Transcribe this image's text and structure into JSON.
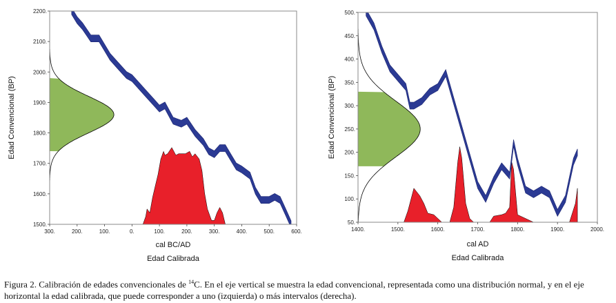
{
  "caption": {
    "prefix": "Figura 2. Calibración de edades convencionales de ",
    "superscript": "14",
    "suffix": "C. En el eje vertical se muestra la edad convencional, representada como una distribución normal, y en el eje horizontal la edad calibrada, que puede corresponder a uno (izquierda) o más intervalos (derecha)."
  },
  "chart_data": [
    {
      "type": "area",
      "ylabel": "Edad Convencional (BP)",
      "xlabel_axis": "cal BC/AD",
      "xlabel": "Edad Calibrada",
      "x_ticks": [
        "300.",
        "200.",
        "100.",
        "0.",
        "100.",
        "200.",
        "300.",
        "400.",
        "500.",
        "600."
      ],
      "y_ticks": [
        "1500.",
        "1600.",
        "1700.",
        "1800.",
        "1900.",
        "2000.",
        "2100.",
        "2200."
      ],
      "xlim": [
        -300,
        600
      ],
      "ylim": [
        1500,
        2200
      ],
      "colors": {
        "calibration_curve": "#2b3a94",
        "conventional_age": "#8fb85a",
        "calibrated_age": "#e8202a",
        "outline": "#000000"
      },
      "calibration_curve": {
        "x": [
          -220,
          -200,
          -180,
          -150,
          -120,
          -100,
          -80,
          -50,
          -20,
          0,
          20,
          50,
          80,
          100,
          120,
          150,
          180,
          200,
          230,
          260,
          280,
          300,
          320,
          340,
          360,
          380,
          400,
          430,
          450,
          470,
          500,
          520,
          540,
          560,
          580
        ],
        "y": [
          2200,
          2170,
          2150,
          2110,
          2110,
          2080,
          2050,
          2020,
          1990,
          1980,
          1960,
          1930,
          1900,
          1880,
          1890,
          1840,
          1830,
          1840,
          1800,
          1770,
          1740,
          1730,
          1750,
          1750,
          1720,
          1690,
          1680,
          1660,
          1610,
          1580,
          1580,
          1590,
          1580,
          1540,
          1500
        ]
      },
      "conventional_age": {
        "mean": 1860,
        "sd": 60,
        "shaded": [
          1740,
          1980
        ]
      },
      "calibrated_age": {
        "x": [
          40,
          50,
          55,
          65,
          75,
          85,
          95,
          105,
          115,
          120,
          130,
          145,
          160,
          170,
          180,
          195,
          210,
          220,
          230,
          245,
          255,
          265,
          275,
          285,
          290,
          300,
          310,
          320,
          330,
          340
        ],
        "p": [
          0,
          0.1,
          0.2,
          0.15,
          0.35,
          0.5,
          0.65,
          0.85,
          0.95,
          0.9,
          0.92,
          1.0,
          0.9,
          0.92,
          0.92,
          0.92,
          0.95,
          0.88,
          0.92,
          0.85,
          0.7,
          0.4,
          0.2,
          0.1,
          0.05,
          0.05,
          0.15,
          0.22,
          0.15,
          0
        ]
      }
    },
    {
      "type": "area",
      "ylabel": "Edad Convencional (BP)",
      "xlabel_axis": "cal AD",
      "xlabel": "Edad Calibrada",
      "x_ticks": [
        "1400.",
        "1500.",
        "1600.",
        "1700.",
        "1800.",
        "1900.",
        "2000."
      ],
      "y_ticks": [
        "50.",
        "100.",
        "150.",
        "200.",
        "250.",
        "300.",
        "350.",
        "400.",
        "450.",
        "500."
      ],
      "xlim": [
        1400,
        2000
      ],
      "ylim": [
        50,
        500
      ],
      "colors": {
        "calibration_curve": "#2b3a94",
        "conventional_age": "#8fb85a",
        "calibrated_age": "#e8202a",
        "outline": "#000000"
      },
      "calibration_curve": {
        "x": [
          1420,
          1440,
          1460,
          1480,
          1500,
          1520,
          1530,
          1540,
          1560,
          1580,
          1600,
          1620,
          1640,
          1660,
          1680,
          1700,
          1720,
          1740,
          1760,
          1780,
          1790,
          1800,
          1820,
          1840,
          1860,
          1880,
          1900,
          1920,
          1940,
          1950
        ],
        "y": [
          500,
          470,
          420,
          380,
          360,
          340,
          300,
          300,
          310,
          330,
          340,
          370,
          310,
          250,
          190,
          130,
          100,
          140,
          170,
          150,
          220,
          180,
          120,
          110,
          120,
          110,
          70,
          100,
          180,
          200
        ]
      },
      "conventional_age": {
        "mean": 250,
        "sd": 60,
        "shaded": [
          170,
          330
        ]
      },
      "calibrated_age": {
        "x": [
          1515,
          1525,
          1540,
          1555,
          1565,
          1575,
          1590,
          1600,
          1610,
          1630,
          1640,
          1650,
          1655,
          1660,
          1670,
          1680,
          1690,
          1730,
          1740,
          1760,
          1770,
          1780,
          1785,
          1790,
          1800,
          1840,
          1930,
          1945,
          1950
        ],
        "p": [
          0,
          0.15,
          0.45,
          0.35,
          0.25,
          0.12,
          0.1,
          0.05,
          0,
          0,
          0.2,
          0.8,
          1.0,
          0.85,
          0.25,
          0.05,
          0,
          0,
          0.08,
          0.1,
          0.12,
          0.2,
          0.8,
          0.7,
          0.1,
          0,
          0,
          0.25,
          0.45
        ]
      }
    }
  ]
}
